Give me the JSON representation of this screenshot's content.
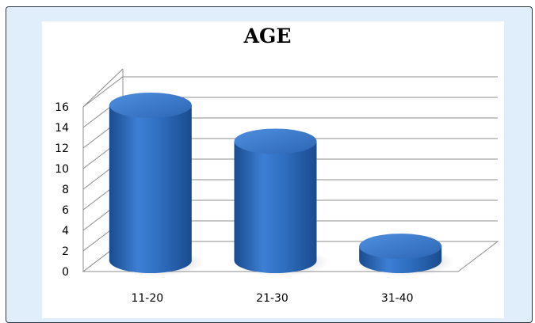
{
  "chart_data": {
    "type": "bar",
    "style": "3d-cylinder",
    "title": "AGE",
    "categories": [
      "11-20",
      "21-30",
      "31-40"
    ],
    "values": [
      16,
      12.5,
      2.3
    ],
    "ylim": [
      0,
      16
    ],
    "yticks": [
      "0",
      "2",
      "4",
      "6",
      "8",
      "10",
      "12",
      "14",
      "16"
    ],
    "xlabel": "",
    "ylabel": "",
    "grid": true,
    "legend": "none",
    "bar_color": "#2f6fc0",
    "bar_highlight": "#4f8fe0",
    "bar_shadow": "#1c4f96"
  }
}
